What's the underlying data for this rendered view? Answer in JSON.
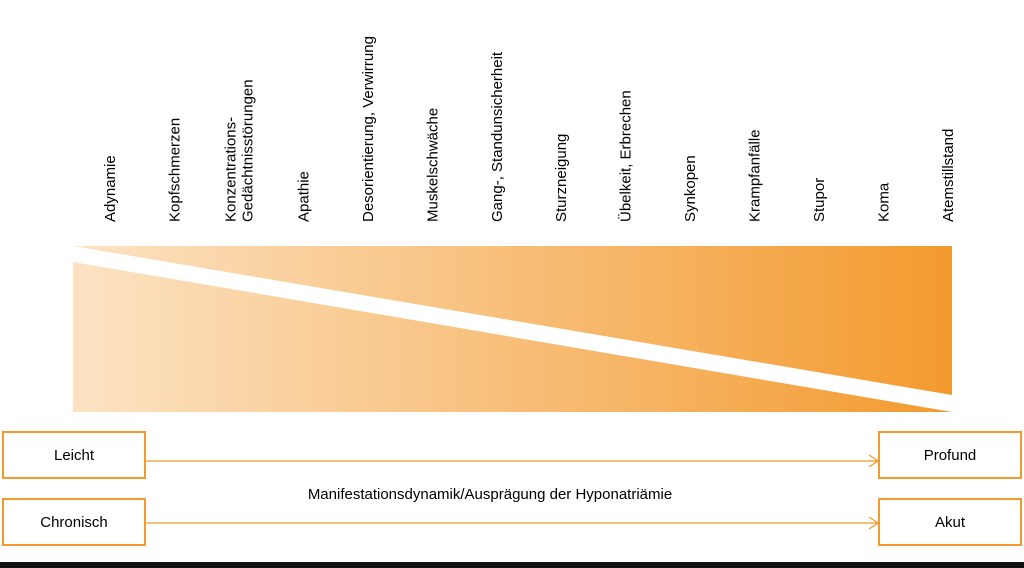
{
  "symptoms": [
    {
      "lines": [
        "Adynamie"
      ]
    },
    {
      "lines": [
        "Kopfschmerzen"
      ]
    },
    {
      "lines": [
        "Konzentrations-",
        "Gedächtnisstörungen"
      ]
    },
    {
      "lines": [
        "Apathie"
      ]
    },
    {
      "lines": [
        "Desorientierung, Verwirrung"
      ]
    },
    {
      "lines": [
        "Muskelschwäche"
      ]
    },
    {
      "lines": [
        "Gang-, Standunsicherheit"
      ]
    },
    {
      "lines": [
        "Sturzneigung"
      ]
    },
    {
      "lines": [
        "Übelkeit, Erbrechen"
      ]
    },
    {
      "lines": [
        "Synkopen"
      ]
    },
    {
      "lines": [
        "Krampfanfälle"
      ]
    },
    {
      "lines": [
        "Stupor"
      ]
    },
    {
      "lines": [
        "Koma"
      ]
    },
    {
      "lines": [
        "Atemstillstand"
      ]
    }
  ],
  "scales": [
    {
      "left": "Leicht",
      "right": "Profund"
    },
    {
      "left": "Chronisch",
      "right": "Akut"
    }
  ],
  "axis_title": "Manifestationsdynamik/Ausprägung der Hyponatriämie",
  "colors": {
    "accent": "#f39a2e",
    "accent_light": "#fce3c4",
    "bottom_bar": "#111111"
  }
}
